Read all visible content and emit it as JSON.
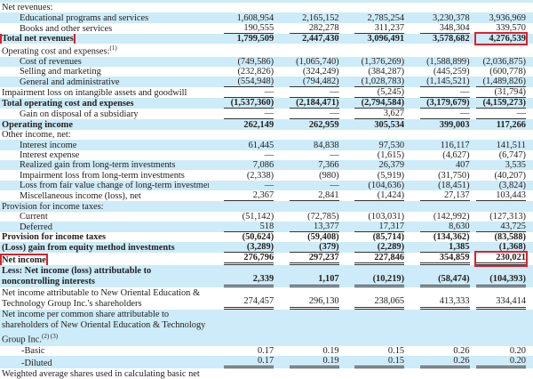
{
  "highlight_color": "#e0202a",
  "band_color": "#cdebf8",
  "rows": [
    {
      "label": "Net revenues:",
      "values": [
        "",
        "",
        "",
        "",
        ""
      ],
      "indent": 0
    },
    {
      "label": "Educational programs and services",
      "values": [
        "1,608,954",
        "2,165,152",
        "2,785,254",
        "3,230,378",
        "3,936,969"
      ],
      "indent": 1,
      "band": true
    },
    {
      "label": "Books and other services",
      "values": [
        "190,555",
        "282,278",
        "311,237",
        "348,304",
        "339,570"
      ],
      "indent": 1,
      "rule": "single"
    },
    {
      "label": "Total net revenues",
      "values": [
        "1,799,509",
        "2,447,430",
        "3,096,491",
        "3,578,682",
        "4,276,539"
      ],
      "bold": true,
      "band": true,
      "highlight_label": true,
      "highlight_last": true
    },
    {
      "label": "Operating cost and expenses:",
      "note": "(1)",
      "values": [
        "",
        "",
        "",
        "",
        ""
      ]
    },
    {
      "label": "Cost of revenues",
      "values": [
        "(749,586)",
        "(1,065,740)",
        "(1,376,269)",
        "(1,588,899)",
        "(2,036,875)"
      ],
      "indent": 1,
      "band": true
    },
    {
      "label": "Selling and marketing",
      "values": [
        "(232,826)",
        "(324,249)",
        "(384,287)",
        "(445,259)",
        "(600,778)"
      ],
      "indent": 1
    },
    {
      "label": "General and administrative",
      "values": [
        "(554,948)",
        "(794,482)",
        "(1,028,783)",
        "(1,145,521)",
        "(1,489,826)"
      ],
      "indent": 1,
      "band": true,
      "rule": "single"
    },
    {
      "label": "Impairment loss on intangible assets and goodwill",
      "values": [
        "—",
        "—",
        "(5,245)",
        "—",
        "(31,794)"
      ],
      "rule": "single"
    },
    {
      "label": "Total operating cost and expenses",
      "values": [
        "(1,537,360)",
        "(2,184,471)",
        "(2,794,584)",
        "(3,179,679)",
        "(4,159,273)"
      ],
      "bold": true,
      "band": true,
      "rule": "single"
    },
    {
      "label": "Gain on disposal of a subsidiary",
      "values": [
        "—",
        "—",
        "3,627",
        "—",
        "—"
      ],
      "indent": 1,
      "rule": "single"
    },
    {
      "label": "Operating income",
      "values": [
        "262,149",
        "262,959",
        "305,534",
        "399,003",
        "117,266"
      ],
      "bold": true,
      "band": true
    },
    {
      "label": "Other income, net:",
      "values": [
        "",
        "",
        "",
        "",
        ""
      ]
    },
    {
      "label": "Interest income",
      "values": [
        "61,445",
        "84,838",
        "97,530",
        "116,117",
        "141,511"
      ],
      "indent": 1,
      "band": true
    },
    {
      "label": "Interest expense",
      "values": [
        "—",
        "—",
        "(1,615)",
        "(4,627)",
        "(6,747)"
      ],
      "indent": 1
    },
    {
      "label": "Realized gain from long-term investments",
      "values": [
        "7,086",
        "7,366",
        "26,379",
        "407",
        "3,535"
      ],
      "indent": 1,
      "band": true
    },
    {
      "label": "Impairment loss from long-term investments",
      "values": [
        "(2,338)",
        "(980)",
        "(5,919)",
        "(31,750)",
        "(40,207)"
      ],
      "indent": 1
    },
    {
      "label": "Loss from fair value change of long-term investments",
      "values": [
        "—",
        "—",
        "(104,636)",
        "(18,451)",
        "(3,824)"
      ],
      "indent": 1,
      "band": true
    },
    {
      "label": "Miscellaneous income (loss), net",
      "values": [
        "2,367",
        "2,841",
        "(1,424)",
        "27,137",
        "103,443"
      ],
      "indent": 1,
      "rule": "single"
    },
    {
      "label": "Provision for income taxes:",
      "values": [
        "",
        "",
        "",
        "",
        ""
      ],
      "band": true
    },
    {
      "label": "Current",
      "values": [
        "(51,142)",
        "(72,785)",
        "(103,031)",
        "(142,992)",
        "(127,313)"
      ],
      "indent": 1
    },
    {
      "label": "Deferred",
      "values": [
        "518",
        "13,377",
        "17,317",
        "8,630",
        "43,725"
      ],
      "indent": 1,
      "band": true,
      "rule": "single"
    },
    {
      "label": "Provision for income taxes",
      "values": [
        "(50,624)",
        "(59,408)",
        "(85,714)",
        "(134,362)",
        "(83,588)"
      ],
      "bold": true
    },
    {
      "label": "(Loss) gain from equity method investments",
      "values": [
        "(3,289)",
        "(379)",
        "(2,289)",
        "1,385",
        "(1,368)"
      ],
      "bold": true,
      "band": true,
      "rule": "single"
    },
    {
      "label": "Net income",
      "values": [
        "276,796",
        "297,237",
        "227,846",
        "354,859",
        "230,021"
      ],
      "bold": true,
      "rule": "double",
      "highlight_label": true,
      "highlight_last": true
    },
    {
      "label": "Less: Net income (loss) attributable to noncontrolling interests",
      "values": [
        "2,339",
        "1,107",
        "(10,219)",
        "(58,474)",
        "(104,393)"
      ],
      "bold": true,
      "band": true,
      "two": true,
      "rule": "double"
    },
    {
      "label": "Net income attributable to New Oriental Education & Technology Group Inc.'s shareholders",
      "values": [
        "274,457",
        "296,130",
        "238,065",
        "413,333",
        "334,414"
      ],
      "two": true,
      "rule": "double"
    },
    {
      "label": "Net income per common share attributable to shareholders of New Oriental Education & Technology Group Inc.",
      "note": "(2) (3)",
      "values": [
        "",
        "",
        "",
        "",
        ""
      ],
      "band": true,
      "two": true
    },
    {
      "label": "-Basic",
      "values": [
        "0.17",
        "0.19",
        "0.15",
        "0.26",
        "0.20"
      ],
      "indent": 2
    },
    {
      "label": "-Diluted",
      "values": [
        "0.17",
        "0.19",
        "0.15",
        "0.26",
        "0.20"
      ],
      "indent": 2,
      "band": true,
      "rule": "double"
    },
    {
      "label": "Weighted average shares used in calculating basic net",
      "values": [
        "",
        "",
        "",
        "",
        ""
      ]
    }
  ]
}
